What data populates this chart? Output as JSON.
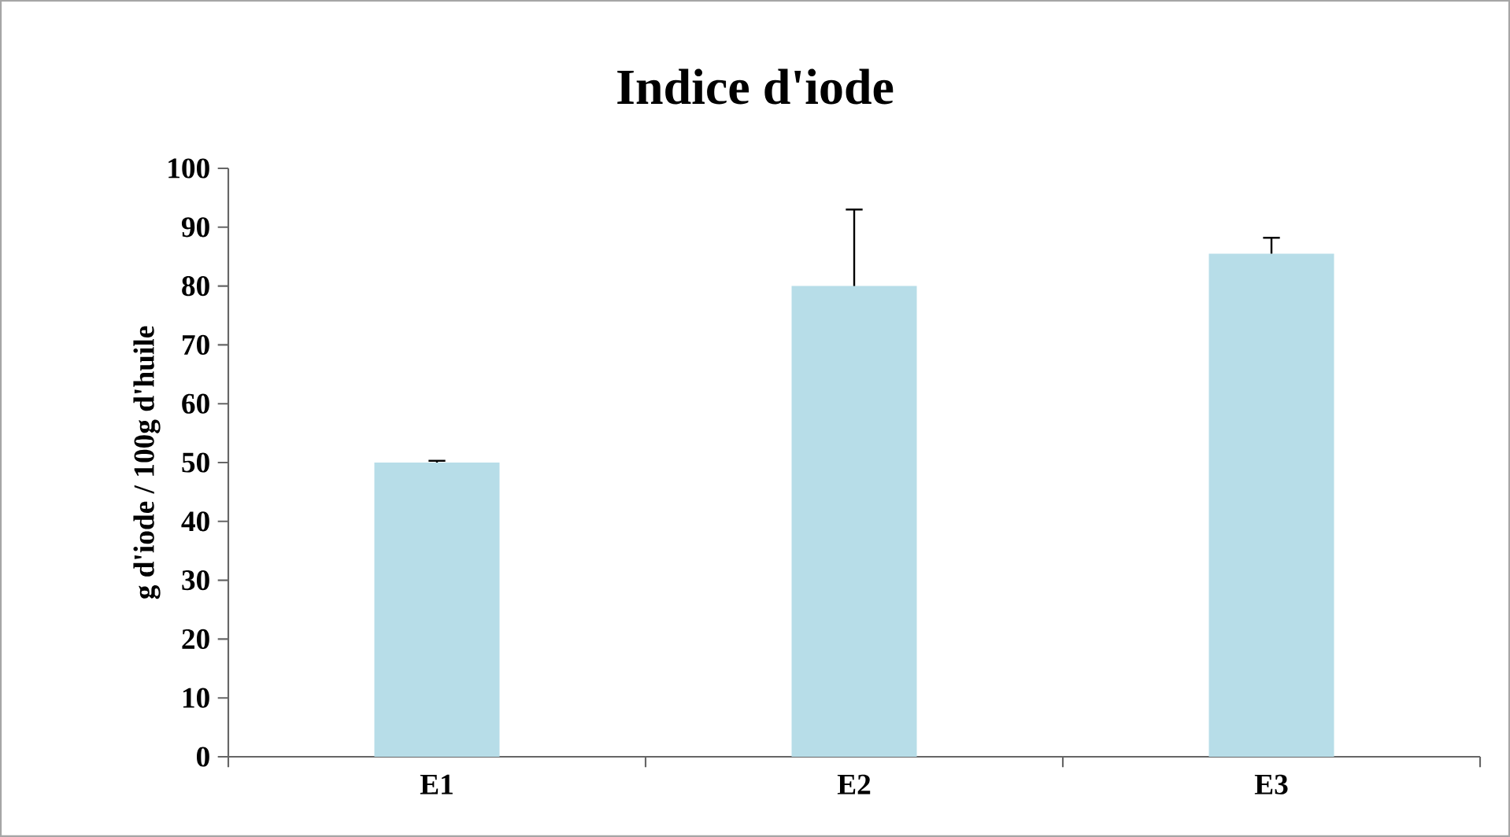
{
  "chart_data": {
    "type": "bar",
    "title": "Indice d'iode",
    "ylabel": "g d'iode / 100g d'huile",
    "categories": [
      "E1",
      "E2",
      "E3"
    ],
    "values": [
      50,
      80,
      85.5
    ],
    "errors": [
      [
        50,
        50.3
      ],
      [
        80,
        93
      ],
      [
        85.5,
        88.2
      ]
    ],
    "color": "#b7dde8",
    "ylim": [
      0,
      100
    ],
    "yticks": [
      0,
      10,
      20,
      30,
      40,
      50,
      60,
      70,
      80,
      90,
      100
    ]
  }
}
